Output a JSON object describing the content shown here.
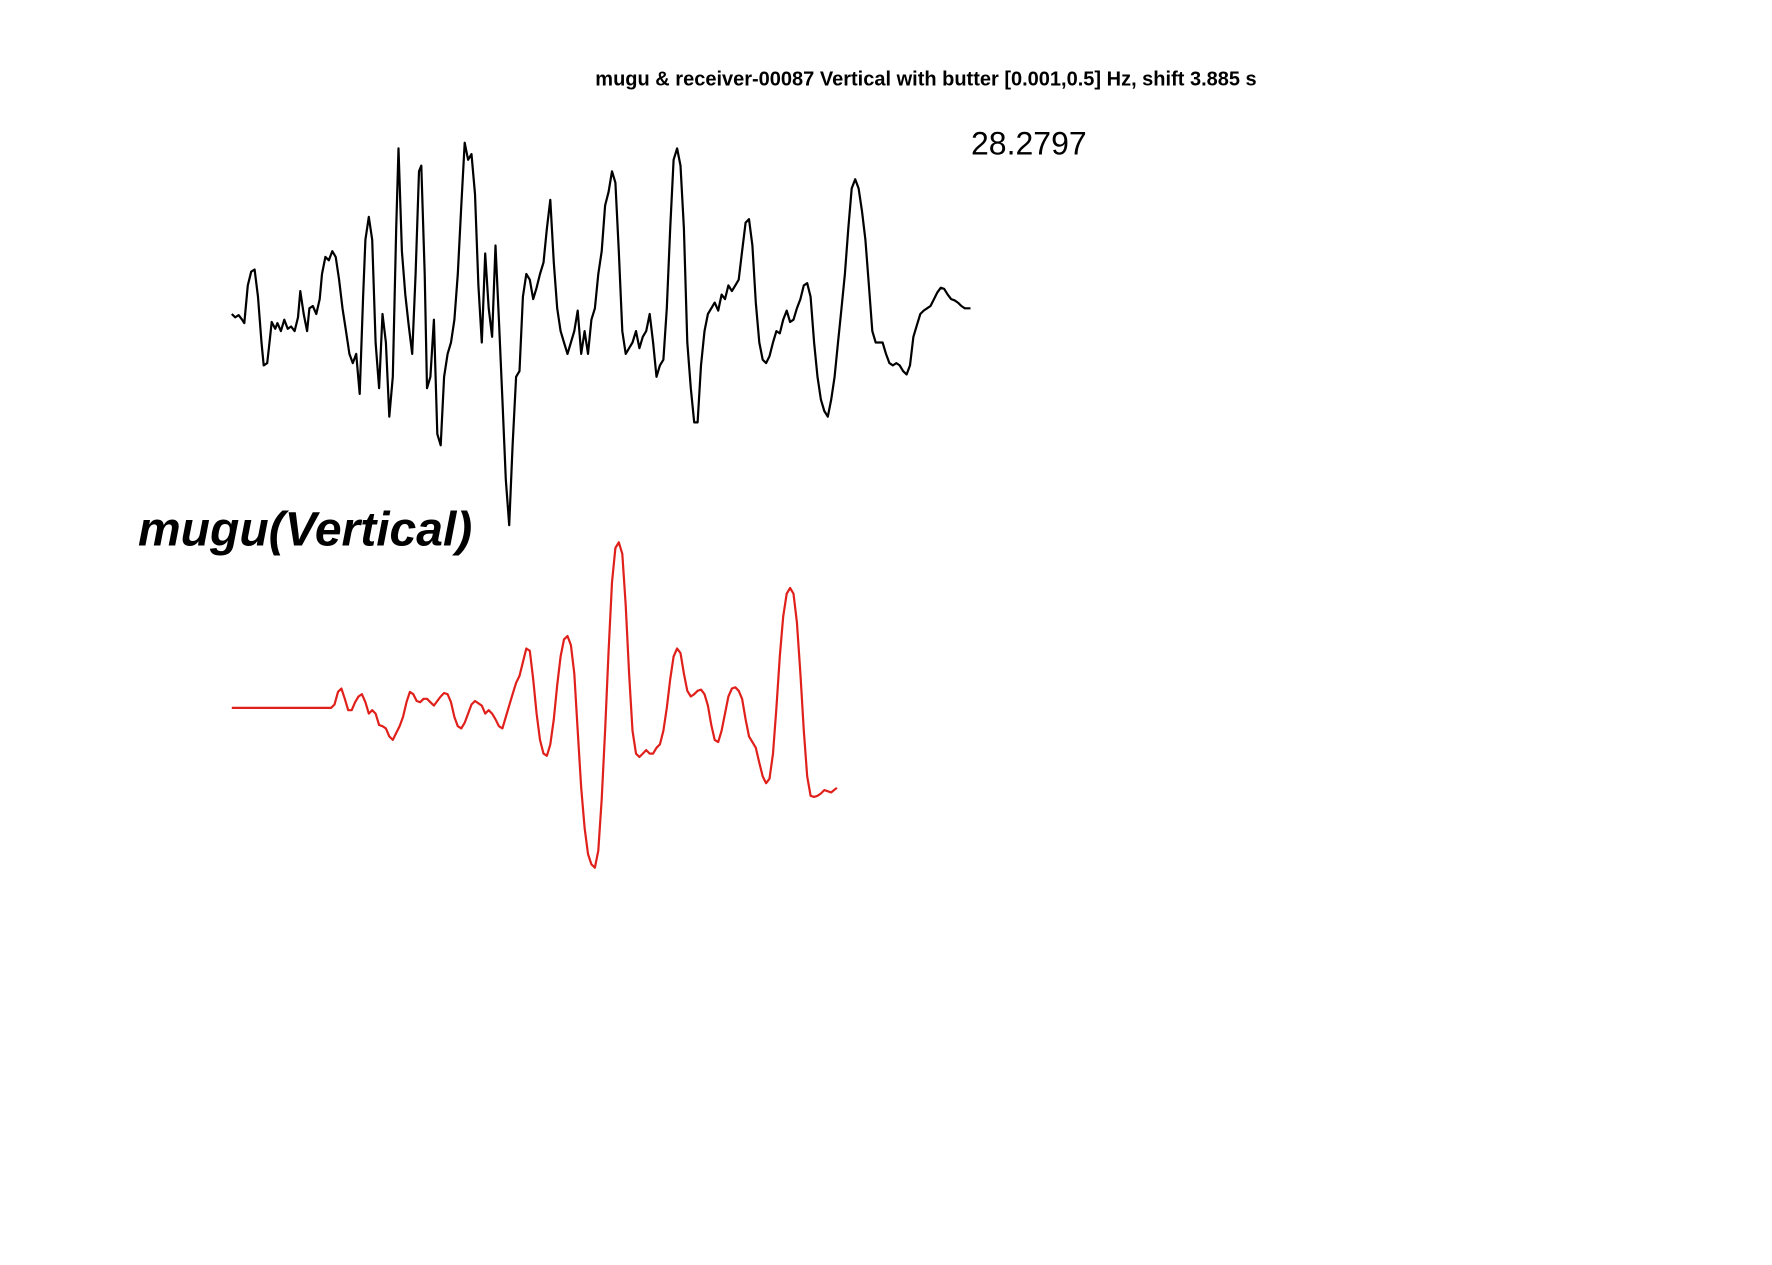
{
  "chart_data": {
    "type": "line",
    "title": "mugu & receiver-00087 Vertical with butter [0.001,0.5] Hz, shift 3.885 s",
    "annotation": "28.2797",
    "trace_label": "mugu(Vertical)",
    "series": [
      {
        "color": "#000000",
        "x": [
          0,
          3,
          6,
          9,
          11,
          14,
          17,
          20,
          23,
          26,
          28,
          31,
          33,
          35,
          38,
          40,
          43,
          46,
          49,
          52,
          55,
          58,
          60,
          63,
          66,
          68,
          71,
          74,
          77,
          79,
          82,
          85,
          88,
          91,
          94,
          97,
          100,
          103,
          106,
          109,
          112,
          115,
          117,
          120,
          123,
          126,
          129,
          132,
          135,
          138,
          141,
          144,
          146,
          149,
          152,
          155,
          158,
          161,
          164,
          166,
          169,
          171,
          174,
          177,
          180,
          183,
          186,
          189,
          192,
          195,
          198,
          201,
          204,
          207,
          210,
          213,
          216,
          219,
          222,
          225,
          228,
          231,
          234,
          237,
          240,
          243,
          246,
          249,
          252,
          255,
          258,
          261,
          264,
          267,
          270,
          273,
          276,
          279,
          282,
          285,
          288,
          291,
          294,
          297,
          300,
          303,
          306,
          309,
          312,
          315,
          318,
          321,
          324,
          327,
          330,
          333,
          336,
          339,
          342,
          345,
          348,
          351,
          354,
          357,
          360,
          363,
          366,
          369,
          372,
          375,
          378,
          381,
          384,
          387,
          390,
          393,
          396,
          399,
          402,
          405,
          408,
          411,
          414,
          417,
          420,
          423,
          426,
          429,
          432,
          435,
          438,
          441,
          444,
          447,
          450,
          453,
          456,
          459,
          462,
          465,
          468,
          471,
          474,
          477,
          480,
          483,
          486,
          489,
          492,
          495,
          498,
          501,
          504,
          507,
          510,
          513,
          516,
          519,
          522,
          525,
          528,
          531,
          534,
          537,
          540,
          543,
          546,
          549,
          552,
          555,
          558,
          561,
          564,
          567,
          570,
          573,
          576,
          579,
          582,
          585,
          588,
          591,
          594,
          597,
          600,
          603,
          606,
          609,
          612,
          615,
          618,
          621,
          624,
          627,
          630,
          633,
          636,
          639,
          642,
          647
        ],
        "values": [
          -5,
          -8,
          -6,
          -10,
          -13,
          20,
          32,
          34,
          10,
          -30,
          -50,
          -48,
          -30,
          -12,
          -18,
          -13,
          -20,
          -10,
          -18,
          -16,
          -20,
          -8,
          15,
          -5,
          -20,
          0,
          2,
          -5,
          8,
          30,
          45,
          42,
          50,
          45,
          25,
          0,
          -20,
          -40,
          -48,
          -40,
          -75,
          10,
          60,
          80,
          60,
          -30,
          -70,
          -5,
          -30,
          -95,
          -60,
          70,
          140,
          50,
          12,
          -15,
          -40,
          30,
          120,
          125,
          30,
          -70,
          -60,
          -10,
          -110,
          -120,
          -60,
          -40,
          -30,
          -10,
          30,
          90,
          145,
          130,
          135,
          100,
          20,
          -30,
          48,
          0,
          -25,
          55,
          -10,
          -80,
          -150,
          -190,
          -120,
          -60,
          -55,
          10,
          30,
          25,
          8,
          18,
          30,
          40,
          70,
          95,
          40,
          0,
          -20,
          -30,
          -40,
          -30,
          -20,
          -2,
          -40,
          -20,
          -40,
          -10,
          0,
          30,
          50,
          90,
          102,
          120,
          110,
          50,
          -20,
          -40,
          -35,
          -30,
          -20,
          -35,
          -25,
          -20,
          -5,
          -30,
          -60,
          -50,
          -45,
          0,
          70,
          130,
          140,
          125,
          70,
          -30,
          -70,
          -100,
          -100,
          -50,
          -20,
          -5,
          0,
          5,
          -2,
          12,
          8,
          20,
          15,
          20,
          25,
          50,
          75,
          78,
          55,
          5,
          -30,
          -45,
          -48,
          -42,
          -30,
          -20,
          -22,
          -10,
          -2,
          -12,
          -10,
          0,
          8,
          20,
          22,
          10,
          -30,
          -60,
          -80,
          -90,
          -95,
          -80,
          -60,
          -30,
          0,
          30,
          70,
          105,
          113,
          105,
          85,
          60,
          20,
          -20,
          -30,
          -30,
          -30,
          -40,
          -48,
          -50,
          -48,
          -50,
          -55,
          -58,
          -50,
          -25,
          -15,
          -5,
          -2,
          0,
          2,
          8,
          14,
          18,
          17,
          12,
          8,
          7,
          5,
          2,
          0,
          0
        ]
      },
      {
        "color": "#e0201b",
        "x": [
          0,
          87,
          90,
          93,
          96,
          99,
          102,
          105,
          108,
          111,
          114,
          117,
          120,
          123,
          126,
          129,
          132,
          135,
          138,
          141,
          144,
          147,
          150,
          153,
          156,
          159,
          162,
          165,
          168,
          171,
          174,
          177,
          180,
          183,
          186,
          189,
          192,
          195,
          198,
          201,
          204,
          207,
          210,
          213,
          216,
          219,
          222,
          225,
          228,
          231,
          234,
          237,
          240,
          243,
          246,
          249,
          252,
          255,
          258,
          261,
          264,
          267,
          270,
          273,
          276,
          279,
          282,
          285,
          288,
          291,
          294,
          297,
          300,
          303,
          306,
          309,
          312,
          315,
          318,
          321,
          324,
          327,
          330,
          333,
          336,
          339,
          342,
          345,
          348,
          351,
          354,
          357,
          360,
          363,
          366,
          369,
          372,
          375,
          378,
          381,
          384,
          387,
          390,
          393,
          396,
          399,
          402,
          405,
          408,
          411,
          414,
          417,
          420,
          423,
          426,
          429,
          432,
          435,
          438,
          441,
          444,
          447,
          450,
          453,
          456,
          459,
          462,
          465,
          468,
          471,
          474,
          477,
          480,
          483,
          486,
          489,
          492,
          495,
          498,
          501,
          504,
          507,
          510,
          513,
          516,
          519,
          525,
          530
        ],
        "values": [
          0,
          0,
          3,
          14,
          17,
          8,
          -2,
          -2,
          5,
          10,
          12,
          5,
          -5,
          -2,
          -5,
          -15,
          -16,
          -18,
          -25,
          -28,
          -22,
          -16,
          -8,
          5,
          14,
          12,
          6,
          5,
          8,
          8,
          5,
          2,
          6,
          10,
          13,
          12,
          5,
          -8,
          -16,
          -18,
          -13,
          -5,
          3,
          6,
          4,
          2,
          -5,
          -2,
          -5,
          -10,
          -16,
          -18,
          -8,
          2,
          12,
          22,
          28,
          40,
          52,
          50,
          25,
          -5,
          -28,
          -40,
          -42,
          -32,
          -10,
          20,
          45,
          60,
          63,
          55,
          30,
          -20,
          -70,
          -105,
          -128,
          -137,
          -140,
          -125,
          -80,
          -20,
          50,
          110,
          140,
          145,
          135,
          90,
          30,
          -20,
          -40,
          -43,
          -40,
          -37,
          -40,
          -40,
          -35,
          -32,
          -20,
          0,
          25,
          45,
          52,
          48,
          30,
          15,
          10,
          12,
          15,
          16,
          12,
          2,
          -15,
          -28,
          -30,
          -20,
          -5,
          10,
          17,
          18,
          15,
          8,
          -10,
          -25,
          -30,
          -35,
          -48,
          -60,
          -66,
          -62,
          -40,
          0,
          45,
          80,
          100,
          105,
          100,
          75,
          30,
          -20,
          -60,
          -77,
          -78,
          -77,
          -75,
          -72,
          -74,
          -70
        ]
      }
    ]
  }
}
